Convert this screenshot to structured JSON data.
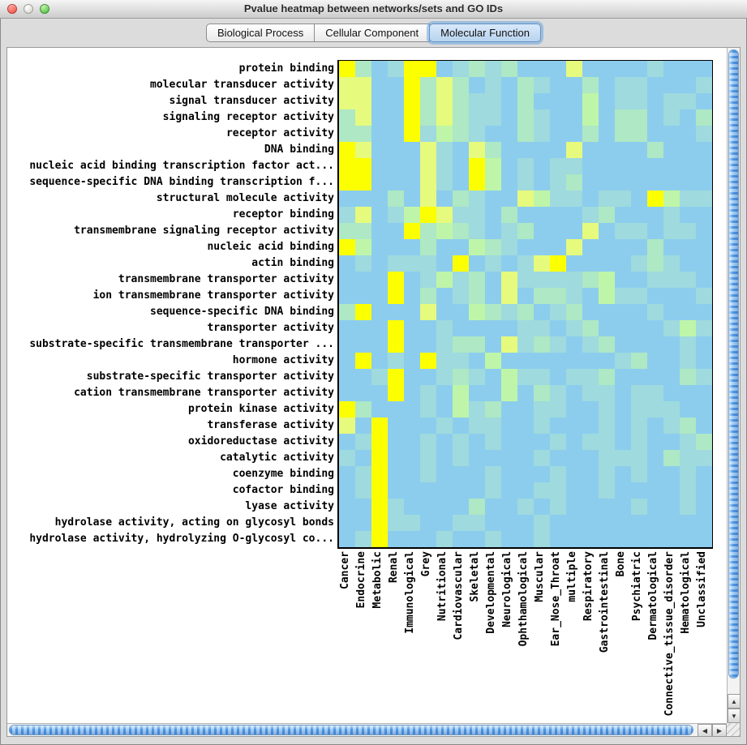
{
  "window": {
    "title": "Pvalue heatmap between networks/sets and GO IDs"
  },
  "tabs": [
    {
      "label": "Biological Process",
      "selected": false
    },
    {
      "label": "Cellular Component",
      "selected": false
    },
    {
      "label": "Molecular Function",
      "selected": true
    }
  ],
  "icons": {
    "up": "▲",
    "down": "▼",
    "left": "◀",
    "right": "▶"
  },
  "chart_data": {
    "type": "heatmap",
    "title": "Pvalue heatmap between networks/sets and GO IDs",
    "rows": [
      "protein binding",
      "molecular transducer activity",
      "signal transducer activity",
      "signaling receptor activity",
      "receptor activity",
      "DNA binding",
      "nucleic acid binding transcription factor act...",
      "sequence-specific DNA binding transcription f...",
      "structural molecule activity",
      "receptor binding",
      "transmembrane signaling receptor activity",
      "nucleic acid binding",
      "actin binding",
      "transmembrane transporter activity",
      "ion transmembrane transporter activity",
      "sequence-specific DNA binding",
      "transporter activity",
      "substrate-specific transmembrane transporter ...",
      "hormone activity",
      "substrate-specific transporter activity",
      "cation transmembrane transporter activity",
      "protein kinase activity",
      "transferase activity",
      "oxidoreductase activity",
      "catalytic activity",
      "coenzyme binding",
      "cofactor binding",
      "lyase activity",
      "hydrolase activity, acting on glycosyl bonds",
      "hydrolase activity, hydrolyzing O-glycosyl co..."
    ],
    "columns": [
      "Cancer",
      "Endocrine",
      "Metabolic",
      "Renal",
      "Immunological",
      "Grey",
      "Nutritional",
      "Cardiovascular",
      "Skeletal",
      "Developmental",
      "Neurological",
      "Ophthamological",
      "Muscular",
      "Ear_Nose_Throat",
      "multiple",
      "Respiratory",
      "Gastrointestinal",
      "Bone",
      "Psychiatric",
      "Dermatological",
      "Connective_tissue_disorder",
      "Hematological",
      "Unclassified"
    ],
    "palette": [
      "#8ccdee",
      "#9edade",
      "#aee8c4",
      "#bff5a8",
      "#e6fa7d",
      "#fcff00"
    ],
    "level_meaning": "0 = low significance (light blue) through 5 = high significance (bright yellow)",
    "values": [
      "52015501212000400001000",
      "44005242010210020110001",
      "44005242110200030110110",
      "24005242110210030220102",
      "22005132100210020220001",
      "54000410420000400002000",
      "55000410530101100000000",
      "55000410530101200000000",
      "00020402100431101105311",
      "14013541102000012000100",
      "22005232101200040110110",
      "53000200321000400002000",
      "01011105010145000012100",
      "00050131204111123001110",
      "00050201204022103110001",
      "25000400321201200001000",
      "00050010000110120000131",
      "00050012204121012000010",
      "05010511030000000120010",
      "00150012103110112000021",
      "00050103003021011011000",
      "52000103120011001011100",
      "40500010110010001010120",
      "01500101010001011010012",
      "10500101000010001110211",
      "01500100010001001010010",
      "01500000010011001000010",
      "00510000200101000010010",
      "00511001100010000000000",
      "01500010010010000000000"
    ]
  }
}
